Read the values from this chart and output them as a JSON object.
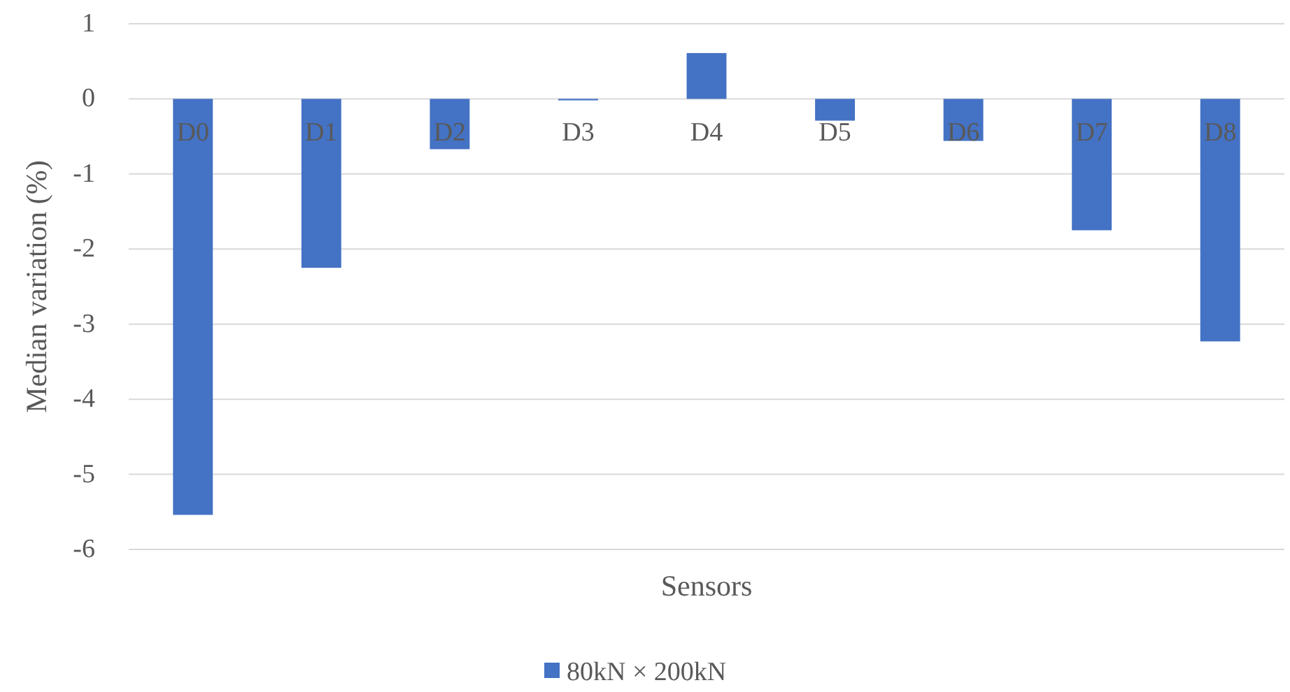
{
  "chart_data": {
    "type": "bar",
    "xlabel": "Sensors",
    "ylabel": "Median variation (%)",
    "categories": [
      "D0",
      "D1",
      "D2",
      "D3",
      "D4",
      "D5",
      "D6",
      "D7",
      "D8"
    ],
    "series": [
      {
        "name": "80kN × 200kN",
        "color": "#4472c4",
        "values": [
          -5.54,
          -2.25,
          -0.67,
          -0.02,
          0.61,
          -0.29,
          -0.56,
          -1.75,
          -3.23
        ]
      }
    ],
    "ylim": [
      -6,
      1
    ],
    "yticks": [
      -6,
      -5,
      -4,
      -3,
      -2,
      -1,
      0,
      1
    ],
    "grid": "y",
    "legend": "bottom"
  }
}
